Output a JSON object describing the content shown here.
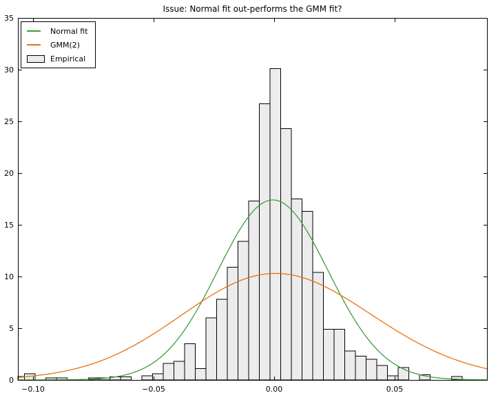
{
  "chart_data": {
    "type": "histogram_with_line_fits",
    "title": "Issue: Normal fit out-performs the GMM fit?",
    "xlabel": "",
    "ylabel": "",
    "xlim": [
      -0.1063,
      0.0883
    ],
    "ylim": [
      0,
      35
    ],
    "x_ticks": [
      -0.1,
      -0.05,
      0.0,
      0.05
    ],
    "x_tick_labels": [
      "−0.10",
      "−0.05",
      "0.00",
      "0.05"
    ],
    "y_ticks": [
      0,
      5,
      10,
      15,
      20,
      25,
      30,
      35
    ],
    "y_tick_labels": [
      "0",
      "5",
      "10",
      "15",
      "20",
      "25",
      "30",
      "35"
    ],
    "grid": false,
    "legend_position": "upper left",
    "histogram": {
      "label": "Empirical",
      "normalized": true,
      "bin_start": -0.108,
      "bin_width": 0.004429,
      "densities": [
        0.35,
        0.6,
        0,
        0.2,
        0.2,
        0,
        0,
        0.2,
        0.2,
        0.3,
        0.3,
        0,
        0.4,
        0.6,
        1.6,
        1.8,
        3.5,
        1.1,
        6.0,
        7.8,
        10.9,
        13.4,
        17.3,
        26.7,
        30.1,
        24.3,
        17.5,
        16.3,
        10.4,
        4.9,
        4.9,
        2.8,
        2.3,
        2.0,
        1.4,
        0.4,
        1.2,
        0,
        0.5,
        0,
        0,
        0.35,
        0,
        0
      ]
    },
    "curves": [
      {
        "label": "Normal fit",
        "color": "#3d9c3d",
        "peak_density": 17.4,
        "components": [
          {
            "amplitude": 17.4,
            "mean": -0.0005,
            "sigma": 0.0229
          }
        ]
      },
      {
        "label": "GMM(2)",
        "color": "#e8700e",
        "peak_density": 10.2,
        "components": [
          {
            "amplitude": 5.1,
            "mean": -0.004,
            "sigma": 0.036
          },
          {
            "amplitude": 5.3,
            "mean": 0.007,
            "sigma": 0.043
          }
        ]
      }
    ]
  },
  "legend": {
    "items": [
      {
        "label": "Normal fit",
        "swatch": "line",
        "color": "#3d9c3d"
      },
      {
        "label": "GMM(2)",
        "swatch": "line",
        "color": "#e8700e"
      },
      {
        "label": "Empirical",
        "swatch": "patch",
        "fill": "#ececec",
        "edge": "#000000"
      }
    ]
  },
  "colors": {
    "background": "#ffffff",
    "axis": "#000000",
    "bar_fill": "#ececec",
    "bar_edge": "#000000",
    "tick_label": "#000000"
  }
}
